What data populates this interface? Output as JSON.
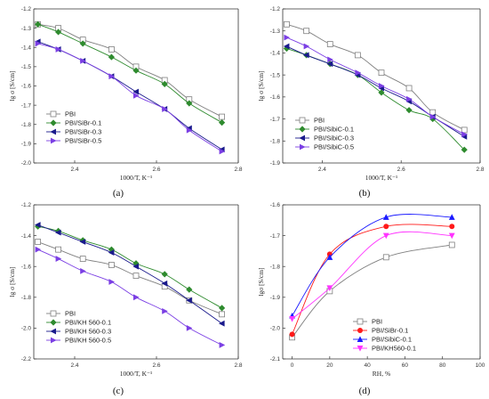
{
  "chart_data": [
    {
      "type": "line",
      "panel_label": "(a)",
      "xlabel": "1000/T, K⁻¹",
      "ylabel": "lg σ [S/cm]",
      "xlim": [
        2.3,
        2.8
      ],
      "ylim": [
        -2.0,
        -1.2
      ],
      "xticks": [
        2.4,
        2.6,
        2.8
      ],
      "xtick_labels": [
        "2.4",
        "2.6",
        "2.8"
      ],
      "yticks": [
        -2.0,
        -1.9,
        -1.8,
        -1.7,
        -1.6,
        -1.5,
        -1.4,
        -1.3,
        -1.2
      ],
      "ytick_labels": [
        "-2.0",
        "-1.9",
        "-1.8",
        "-1.7",
        "-1.6",
        "-1.5",
        "-1.4",
        "-1.3",
        "-1.2"
      ],
      "legend_position": "bottom-left",
      "series": [
        {
          "name": "PBI",
          "color": "#808080",
          "marker": "square-open",
          "x": [
            2.31,
            2.36,
            2.42,
            2.49,
            2.55,
            2.62,
            2.68,
            2.76
          ],
          "y": [
            -1.28,
            -1.3,
            -1.36,
            -1.41,
            -1.5,
            -1.57,
            -1.67,
            -1.76
          ]
        },
        {
          "name": "PBI/SiBr-0.1",
          "color": "#2e8b2e",
          "marker": "diamond",
          "x": [
            2.31,
            2.36,
            2.42,
            2.49,
            2.55,
            2.62,
            2.68,
            2.76
          ],
          "y": [
            -1.28,
            -1.32,
            -1.38,
            -1.45,
            -1.52,
            -1.59,
            -1.69,
            -1.79
          ]
        },
        {
          "name": "PBI/SiBr-0.3",
          "color": "#1a1a8c",
          "marker": "triangle-left",
          "x": [
            2.31,
            2.36,
            2.42,
            2.49,
            2.55,
            2.62,
            2.68,
            2.76
          ],
          "y": [
            -1.37,
            -1.41,
            -1.47,
            -1.55,
            -1.63,
            -1.72,
            -1.82,
            -1.93
          ]
        },
        {
          "name": "PBI/SiBr-0.5",
          "color": "#7b3fe4",
          "marker": "triangle-right",
          "x": [
            2.31,
            2.36,
            2.42,
            2.49,
            2.55,
            2.62,
            2.68,
            2.76
          ],
          "y": [
            -1.38,
            -1.41,
            -1.47,
            -1.55,
            -1.65,
            -1.72,
            -1.83,
            -1.94
          ]
        }
      ]
    },
    {
      "type": "line",
      "panel_label": "(b)",
      "xlabel": "1000/T, K⁻¹",
      "ylabel": "lg σ [S/cm]",
      "xlim": [
        2.3,
        2.8
      ],
      "ylim": [
        -1.9,
        -1.2
      ],
      "xticks": [
        2.4,
        2.6,
        2.8
      ],
      "xtick_labels": [
        "2.4",
        "2.6",
        "2.8"
      ],
      "yticks": [
        -1.9,
        -1.8,
        -1.7,
        -1.6,
        -1.5,
        -1.4,
        -1.3,
        -1.2
      ],
      "ytick_labels": [
        "-1.9",
        "-1.8",
        "-1.7",
        "-1.6",
        "-1.5",
        "-1.4",
        "-1.3",
        "-1.2"
      ],
      "legend_position": "bottom-left",
      "series": [
        {
          "name": "PBI",
          "color": "#808080",
          "marker": "square-open",
          "x": [
            2.31,
            2.36,
            2.42,
            2.49,
            2.55,
            2.62,
            2.68,
            2.76
          ],
          "y": [
            -1.27,
            -1.3,
            -1.36,
            -1.41,
            -1.49,
            -1.56,
            -1.67,
            -1.75
          ]
        },
        {
          "name": "PBI/SibiC-0.1",
          "color": "#2e8b2e",
          "marker": "diamond",
          "x": [
            2.31,
            2.36,
            2.42,
            2.49,
            2.55,
            2.62,
            2.68,
            2.76
          ],
          "y": [
            -1.38,
            -1.41,
            -1.45,
            -1.5,
            -1.58,
            -1.66,
            -1.7,
            -1.84
          ]
        },
        {
          "name": "PBI/SibiC-0.3",
          "color": "#1a1a8c",
          "marker": "triangle-left",
          "x": [
            2.31,
            2.36,
            2.42,
            2.49,
            2.55,
            2.62,
            2.68,
            2.76
          ],
          "y": [
            -1.37,
            -1.41,
            -1.45,
            -1.5,
            -1.56,
            -1.62,
            -1.69,
            -1.78
          ]
        },
        {
          "name": "PBI/SibiC-0.5",
          "color": "#7b3fe4",
          "marker": "triangle-right",
          "x": [
            2.31,
            2.36,
            2.42,
            2.49,
            2.55,
            2.62,
            2.68,
            2.76
          ],
          "y": [
            -1.33,
            -1.37,
            -1.43,
            -1.49,
            -1.55,
            -1.61,
            -1.69,
            -1.77
          ]
        }
      ]
    },
    {
      "type": "line",
      "panel_label": "(c)",
      "xlabel": "1000/T, K⁻¹",
      "ylabel": "lg σ [S/cm]",
      "xlim": [
        2.3,
        2.8
      ],
      "ylim": [
        -2.2,
        -1.2
      ],
      "xticks": [
        2.4,
        2.6,
        2.8
      ],
      "xtick_labels": [
        "2.4",
        "2.6",
        "2.8"
      ],
      "yticks": [
        -2.2,
        -2.0,
        -1.8,
        -1.6,
        -1.4,
        -1.2
      ],
      "ytick_labels": [
        "-2.2",
        "-2.0",
        "-1.8",
        "-1.6",
        "-1.4",
        "-1.2"
      ],
      "legend_position": "bottom-left",
      "series": [
        {
          "name": "PBI",
          "color": "#808080",
          "marker": "square-open",
          "x": [
            2.31,
            2.36,
            2.42,
            2.49,
            2.55,
            2.62,
            2.68,
            2.76
          ],
          "y": [
            -1.44,
            -1.49,
            -1.55,
            -1.59,
            -1.66,
            -1.73,
            -1.82,
            -1.91
          ]
        },
        {
          "name": "PBI/KH 560-0.1",
          "color": "#2e8b2e",
          "marker": "diamond",
          "x": [
            2.31,
            2.36,
            2.42,
            2.49,
            2.55,
            2.62,
            2.68,
            2.76
          ],
          "y": [
            -1.34,
            -1.37,
            -1.43,
            -1.49,
            -1.58,
            -1.65,
            -1.75,
            -1.87
          ]
        },
        {
          "name": "PBI/KH 560-0.3",
          "color": "#1a1a8c",
          "marker": "triangle-left",
          "x": [
            2.31,
            2.36,
            2.42,
            2.49,
            2.55,
            2.62,
            2.68,
            2.76
          ],
          "y": [
            -1.33,
            -1.38,
            -1.44,
            -1.51,
            -1.6,
            -1.71,
            -1.82,
            -1.97
          ]
        },
        {
          "name": "PBI/KH 560-0.5",
          "color": "#7b3fe4",
          "marker": "triangle-right",
          "x": [
            2.31,
            2.36,
            2.42,
            2.49,
            2.55,
            2.62,
            2.68,
            2.76
          ],
          "y": [
            -1.49,
            -1.55,
            -1.63,
            -1.7,
            -1.8,
            -1.89,
            -2.0,
            -2.11
          ]
        }
      ]
    },
    {
      "type": "line",
      "panel_label": "(d)",
      "xlabel": "RH, %",
      "ylabel": "lgσ [S/cm]",
      "xlim": [
        -5,
        100
      ],
      "ylim": [
        -2.1,
        -1.6
      ],
      "xticks": [
        0,
        20,
        40,
        60,
        80,
        100
      ],
      "xtick_labels": [
        "0",
        "20",
        "40",
        "60",
        "80",
        "100"
      ],
      "yticks": [
        -2.1,
        -2.0,
        -1.9,
        -1.8,
        -1.7,
        -1.6
      ],
      "ytick_labels": [
        "-2.1",
        "-2.0",
        "-1.9",
        "-1.8",
        "-1.7",
        "-1.6"
      ],
      "legend_position": "bottom-right",
      "series": [
        {
          "name": "PBI",
          "color": "#808080",
          "marker": "square-open",
          "x": [
            0,
            20,
            50,
            85
          ],
          "y": [
            -2.03,
            -1.88,
            -1.77,
            -1.73
          ]
        },
        {
          "name": "PBI/SiBr-0.1",
          "color": "#ff1a1a",
          "marker": "circle",
          "x": [
            0,
            20,
            50,
            85
          ],
          "y": [
            -2.02,
            -1.76,
            -1.67,
            -1.67
          ]
        },
        {
          "name": "PBI/SibiC-0.1",
          "color": "#1a1aff",
          "marker": "triangle-up",
          "x": [
            0,
            20,
            50,
            85
          ],
          "y": [
            -1.96,
            -1.77,
            -1.64,
            -1.64
          ]
        },
        {
          "name": "PBI/KH560-0.1",
          "color": "#ff33ff",
          "marker": "triangle-down",
          "x": [
            0,
            20,
            50,
            85
          ],
          "y": [
            -1.97,
            -1.87,
            -1.7,
            -1.7
          ]
        }
      ]
    }
  ]
}
